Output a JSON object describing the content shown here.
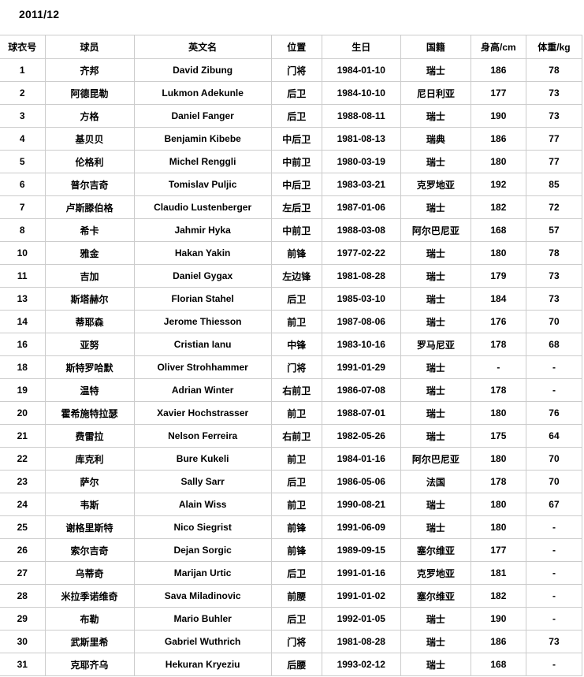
{
  "page": {
    "title": "2011/12"
  },
  "colors": {
    "background": "#ffffff",
    "text": "#000000",
    "table_border": "#cccccc"
  },
  "table": {
    "columns": [
      "球衣号",
      "球员",
      "英文名",
      "位置",
      "生日",
      "国籍",
      "身高/cm",
      "体重/kg"
    ],
    "rows": [
      [
        "1",
        "齐邦",
        "David Zibung",
        "门将",
        "1984-01-10",
        "瑞士",
        "186",
        "78"
      ],
      [
        "2",
        "阿德昆勒",
        "Lukmon Adekunle",
        "后卫",
        "1984-10-10",
        "尼日利亚",
        "177",
        "73"
      ],
      [
        "3",
        "方格",
        "Daniel Fanger",
        "后卫",
        "1988-08-11",
        "瑞士",
        "190",
        "73"
      ],
      [
        "4",
        "基贝贝",
        "Benjamin Kibebe",
        "中后卫",
        "1981-08-13",
        "瑞典",
        "186",
        "77"
      ],
      [
        "5",
        "伦格利",
        "Michel Renggli",
        "中前卫",
        "1980-03-19",
        "瑞士",
        "180",
        "77"
      ],
      [
        "6",
        "普尔吉奇",
        "Tomislav Puljic",
        "中后卫",
        "1983-03-21",
        "克罗地亚",
        "192",
        "85"
      ],
      [
        "7",
        "卢斯滕伯格",
        "Claudio Lustenberger",
        "左后卫",
        "1987-01-06",
        "瑞士",
        "182",
        "72"
      ],
      [
        "8",
        "希卡",
        "Jahmir Hyka",
        "中前卫",
        "1988-03-08",
        "阿尔巴尼亚",
        "168",
        "57"
      ],
      [
        "10",
        "雅金",
        "Hakan Yakin",
        "前锋",
        "1977-02-22",
        "瑞士",
        "180",
        "78"
      ],
      [
        "11",
        "吉加",
        "Daniel Gygax",
        "左边锋",
        "1981-08-28",
        "瑞士",
        "179",
        "73"
      ],
      [
        "13",
        "斯塔赫尔",
        "Florian Stahel",
        "后卫",
        "1985-03-10",
        "瑞士",
        "184",
        "73"
      ],
      [
        "14",
        "蒂耶森",
        "Jerome Thiesson",
        "前卫",
        "1987-08-06",
        "瑞士",
        "176",
        "70"
      ],
      [
        "16",
        "亚努",
        "Cristian Ianu",
        "中锋",
        "1983-10-16",
        "罗马尼亚",
        "178",
        "68"
      ],
      [
        "18",
        "斯特罗哈默",
        "Oliver Strohhammer",
        "门将",
        "1991-01-29",
        "瑞士",
        "-",
        "-"
      ],
      [
        "19",
        "温特",
        "Adrian Winter",
        "右前卫",
        "1986-07-08",
        "瑞士",
        "178",
        "-"
      ],
      [
        "20",
        "霍希施特拉瑟",
        "Xavier Hochstrasser",
        "前卫",
        "1988-07-01",
        "瑞士",
        "180",
        "76"
      ],
      [
        "21",
        "费雷拉",
        "Nelson Ferreira",
        "右前卫",
        "1982-05-26",
        "瑞士",
        "175",
        "64"
      ],
      [
        "22",
        "库克利",
        "Bure Kukeli",
        "前卫",
        "1984-01-16",
        "阿尔巴尼亚",
        "180",
        "70"
      ],
      [
        "23",
        "萨尔",
        "Sally Sarr",
        "后卫",
        "1986-05-06",
        "法国",
        "178",
        "70"
      ],
      [
        "24",
        "韦斯",
        "Alain Wiss",
        "前卫",
        "1990-08-21",
        "瑞士",
        "180",
        "67"
      ],
      [
        "25",
        "谢格里斯特",
        "Nico Siegrist",
        "前锋",
        "1991-06-09",
        "瑞士",
        "180",
        "-"
      ],
      [
        "26",
        "索尔吉奇",
        "Dejan Sorgic",
        "前锋",
        "1989-09-15",
        "塞尔维亚",
        "177",
        "-"
      ],
      [
        "27",
        "乌蒂奇",
        "Marijan Urtic",
        "后卫",
        "1991-01-16",
        "克罗地亚",
        "181",
        "-"
      ],
      [
        "28",
        "米拉季诺维奇",
        "Sava Miladinovic",
        "前腰",
        "1991-01-02",
        "塞尔维亚",
        "182",
        "-"
      ],
      [
        "29",
        "布勒",
        "Mario Buhler",
        "后卫",
        "1992-01-05",
        "瑞士",
        "190",
        "-"
      ],
      [
        "30",
        "武斯里希",
        "Gabriel Wuthrich",
        "门将",
        "1981-08-28",
        "瑞士",
        "186",
        "73"
      ],
      [
        "31",
        "克耶齐乌",
        "Hekuran Kryeziu",
        "后腰",
        "1993-02-12",
        "瑞士",
        "168",
        "-"
      ]
    ]
  }
}
